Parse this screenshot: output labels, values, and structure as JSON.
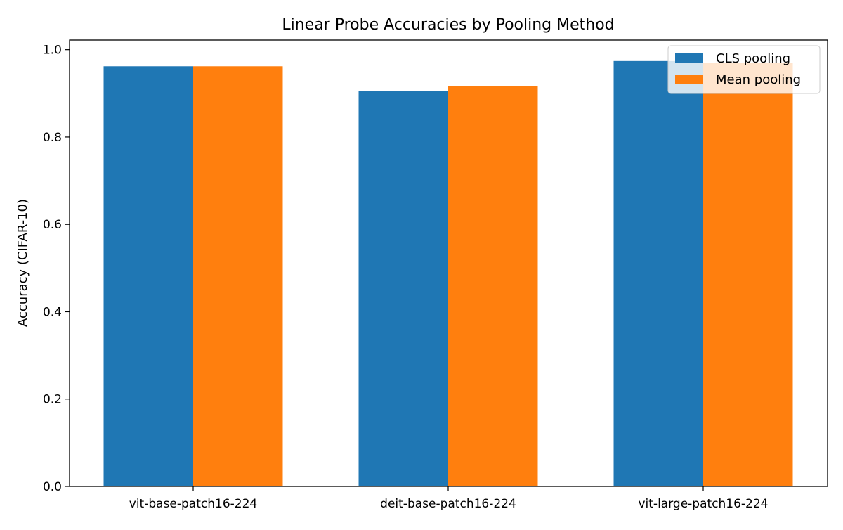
{
  "chart_data": {
    "type": "bar",
    "title": "Linear Probe Accuracies by Pooling Method",
    "xlabel": "",
    "ylabel": "Accuracy (CIFAR-10)",
    "categories": [
      "vit-base-patch16-224",
      "deit-base-patch16-224",
      "vit-large-patch16-224"
    ],
    "series": [
      {
        "name": "CLS pooling",
        "color": "#1f77b4",
        "values": [
          0.962,
          0.906,
          0.974
        ]
      },
      {
        "name": "Mean pooling",
        "color": "#ff7f0e",
        "values": [
          0.962,
          0.916,
          0.97
        ]
      }
    ],
    "ylim": [
      0,
      1.0
    ],
    "yticks": [
      "0.0",
      "0.2",
      "0.4",
      "0.6",
      "0.8",
      "1.0"
    ],
    "grid": false,
    "legend": "top-right"
  }
}
